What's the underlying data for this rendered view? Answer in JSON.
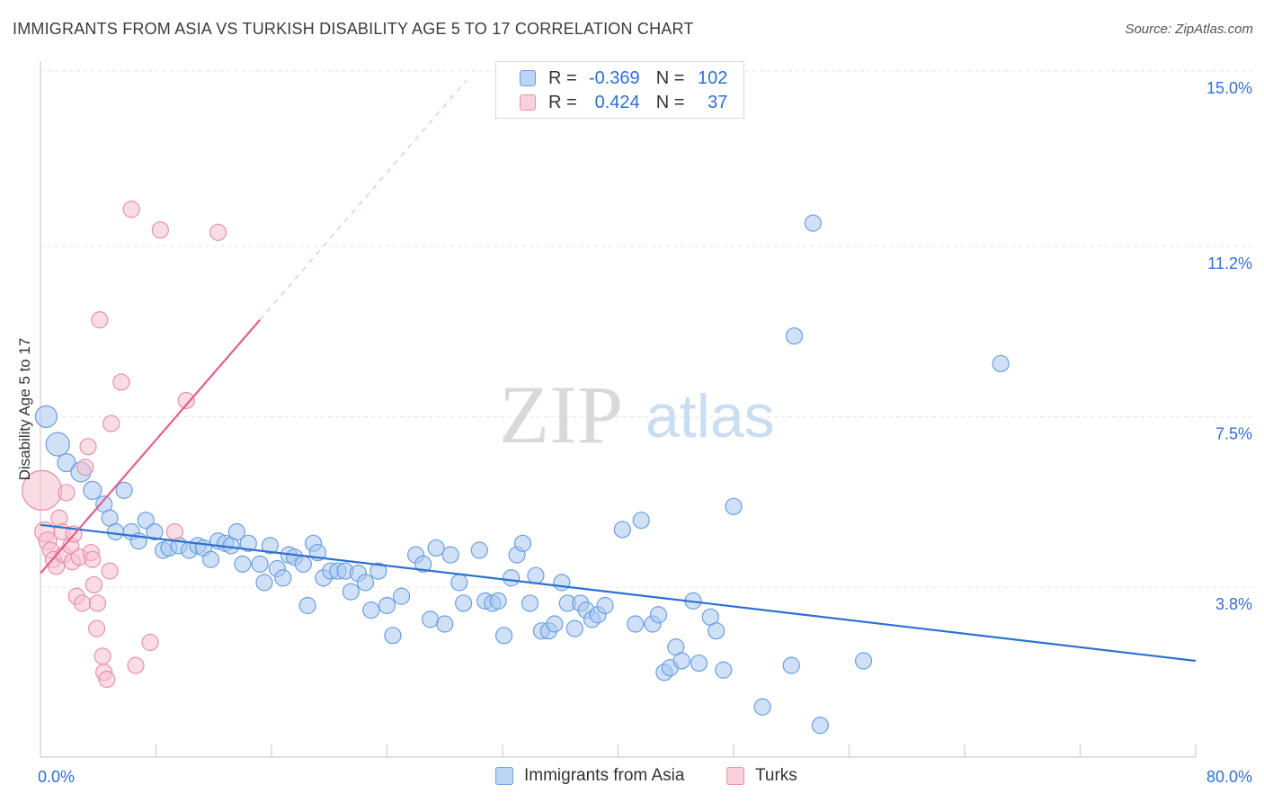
{
  "title": "IMMIGRANTS FROM ASIA VS TURKISH DISABILITY AGE 5 TO 17 CORRELATION CHART",
  "source": "Source: ZipAtlas.com",
  "watermark": {
    "zip": "ZIP",
    "atlas": "atlas"
  },
  "legend": {
    "rows": [
      {
        "r_label": "R =",
        "r_value": "-0.369",
        "n_label": "N =",
        "n_value": "102"
      },
      {
        "r_label": "R =",
        "r_value": "0.424",
        "n_label": "N =",
        "n_value": "37"
      }
    ]
  },
  "bottom_legend": {
    "asia": "Immigrants from Asia",
    "turks": "Turks"
  },
  "colors": {
    "asia_fill": "#a9c8f0",
    "asia_stroke": "#6a9fe0",
    "asia_line": "#2f6fd1",
    "turks_fill": "#f6c0d0",
    "turks_stroke": "#e890ac",
    "turks_line": "#e0608a",
    "tick_label": "#2f6fd1",
    "grid": "#e4e4e4"
  },
  "chart_data": {
    "type": "scatter",
    "title": "IMMIGRANTS FROM ASIA VS TURKISH DISABILITY AGE 5 TO 17 CORRELATION CHART",
    "xlabel": "",
    "ylabel": "Disability Age 5 to 17",
    "xlim": [
      0,
      80
    ],
    "ylim": [
      0,
      15.5
    ],
    "x_tick_labels": [
      "0.0%",
      "80.0%"
    ],
    "y_ticks": [
      3.8,
      7.5,
      11.2,
      15.0
    ],
    "y_tick_labels": [
      "3.8%",
      "7.5%",
      "11.2%",
      "15.0%"
    ],
    "grid": true,
    "legend_position": "top-center",
    "series": [
      {
        "name": "Immigrants from Asia",
        "r": -0.369,
        "n": 102,
        "trend": {
          "x": [
            0,
            80
          ],
          "y": [
            5.15,
            2.2
          ]
        },
        "points": [
          [
            0.4,
            7.5,
            12
          ],
          [
            1.2,
            6.9,
            13
          ],
          [
            1.8,
            6.5,
            10
          ],
          [
            2.8,
            6.3,
            11
          ],
          [
            3.6,
            5.9,
            10
          ],
          [
            5.8,
            5.9,
            9
          ],
          [
            4.4,
            5.6,
            9
          ],
          [
            4.8,
            5.3,
            9
          ],
          [
            5.2,
            5.0,
            9
          ],
          [
            6.3,
            5.0,
            9
          ],
          [
            7.3,
            5.25,
            9
          ],
          [
            7.9,
            5.0,
            9
          ],
          [
            6.8,
            4.8,
            9
          ],
          [
            8.5,
            4.6,
            9
          ],
          [
            8.9,
            4.65,
            9
          ],
          [
            9.6,
            4.7,
            9
          ],
          [
            10.3,
            4.6,
            9
          ],
          [
            10.9,
            4.7,
            9
          ],
          [
            11.3,
            4.65,
            9
          ],
          [
            11.8,
            4.4,
            9
          ],
          [
            12.3,
            4.8,
            9
          ],
          [
            12.8,
            4.75,
            9
          ],
          [
            13.2,
            4.7,
            9
          ],
          [
            13.6,
            5.0,
            9
          ],
          [
            14.0,
            4.3,
            9
          ],
          [
            14.4,
            4.75,
            9
          ],
          [
            15.2,
            4.3,
            9
          ],
          [
            15.5,
            3.9,
            9
          ],
          [
            15.9,
            4.7,
            9
          ],
          [
            16.4,
            4.2,
            9
          ],
          [
            16.8,
            4.0,
            9
          ],
          [
            17.2,
            4.5,
            9
          ],
          [
            17.6,
            4.45,
            9
          ],
          [
            18.2,
            4.3,
            9
          ],
          [
            18.5,
            3.4,
            9
          ],
          [
            18.9,
            4.75,
            9
          ],
          [
            19.2,
            4.55,
            9
          ],
          [
            19.6,
            4.0,
            9
          ],
          [
            20.1,
            4.15,
            9
          ],
          [
            20.6,
            4.15,
            9
          ],
          [
            21.1,
            4.15,
            9
          ],
          [
            21.5,
            3.7,
            9
          ],
          [
            22.0,
            4.1,
            9
          ],
          [
            22.5,
            3.9,
            9
          ],
          [
            22.9,
            3.3,
            9
          ],
          [
            23.4,
            4.15,
            9
          ],
          [
            24.0,
            3.4,
            9
          ],
          [
            24.4,
            2.75,
            9
          ],
          [
            25.0,
            3.6,
            9
          ],
          [
            26.0,
            4.5,
            9
          ],
          [
            26.5,
            4.3,
            9
          ],
          [
            27.0,
            3.1,
            9
          ],
          [
            27.4,
            4.65,
            9
          ],
          [
            28.0,
            3.0,
            9
          ],
          [
            28.4,
            4.5,
            9
          ],
          [
            29.0,
            3.9,
            9
          ],
          [
            29.3,
            3.45,
            9
          ],
          [
            30.4,
            4.6,
            9
          ],
          [
            30.8,
            3.5,
            9
          ],
          [
            31.3,
            3.45,
            9
          ],
          [
            31.7,
            3.5,
            9
          ],
          [
            32.1,
            2.75,
            9
          ],
          [
            32.6,
            4.0,
            9
          ],
          [
            33.0,
            4.5,
            9
          ],
          [
            33.4,
            4.75,
            9
          ],
          [
            33.9,
            3.45,
            9
          ],
          [
            34.3,
            4.05,
            9
          ],
          [
            34.7,
            2.85,
            9
          ],
          [
            35.2,
            2.85,
            9
          ],
          [
            35.6,
            3.0,
            9
          ],
          [
            36.1,
            3.9,
            9
          ],
          [
            36.5,
            3.45,
            9
          ],
          [
            37.0,
            2.9,
            9
          ],
          [
            37.4,
            3.45,
            9
          ],
          [
            37.8,
            3.3,
            9
          ],
          [
            38.2,
            3.1,
            9
          ],
          [
            38.6,
            3.2,
            9
          ],
          [
            39.1,
            3.4,
            9
          ],
          [
            40.3,
            5.05,
            9
          ],
          [
            41.2,
            3.0,
            9
          ],
          [
            41.6,
            5.25,
            9
          ],
          [
            42.4,
            3.0,
            9
          ],
          [
            42.8,
            3.2,
            9
          ],
          [
            43.2,
            1.95,
            9
          ],
          [
            43.6,
            2.05,
            9
          ],
          [
            44.0,
            2.5,
            9
          ],
          [
            44.4,
            2.2,
            9
          ],
          [
            45.2,
            3.5,
            9
          ],
          [
            45.6,
            2.15,
            9
          ],
          [
            46.4,
            3.15,
            9
          ],
          [
            46.8,
            2.85,
            9
          ],
          [
            47.3,
            2.0,
            9
          ],
          [
            48.0,
            5.55,
            9
          ],
          [
            50.0,
            1.2,
            9
          ],
          [
            52.0,
            2.1,
            9
          ],
          [
            52.2,
            9.25,
            9
          ],
          [
            53.5,
            11.7,
            9
          ],
          [
            54.0,
            0.8,
            9
          ],
          [
            57.0,
            2.2,
            9
          ],
          [
            66.5,
            8.65,
            9
          ]
        ]
      },
      {
        "name": "Turks",
        "r": 0.424,
        "n": 37,
        "trend": {
          "x": [
            0,
            15.2
          ],
          "y": [
            4.1,
            9.6
          ]
        },
        "trend_dashed": {
          "x": [
            15.2,
            29.5
          ],
          "y": [
            9.6,
            14.8
          ]
        },
        "points": [
          [
            0.1,
            5.9,
            22
          ],
          [
            0.3,
            5.0,
            11
          ],
          [
            0.5,
            4.8,
            10
          ],
          [
            0.7,
            4.6,
            9
          ],
          [
            0.9,
            4.4,
            9
          ],
          [
            1.1,
            4.25,
            9
          ],
          [
            1.3,
            5.3,
            9
          ],
          [
            1.5,
            5.0,
            9
          ],
          [
            1.6,
            4.5,
            9
          ],
          [
            1.8,
            5.85,
            9
          ],
          [
            2.1,
            4.7,
            9
          ],
          [
            2.2,
            4.35,
            9
          ],
          [
            2.3,
            4.95,
            9
          ],
          [
            2.5,
            3.6,
            9
          ],
          [
            2.7,
            4.45,
            9
          ],
          [
            2.9,
            3.45,
            9
          ],
          [
            3.1,
            6.4,
            9
          ],
          [
            3.3,
            6.85,
            9
          ],
          [
            3.5,
            4.55,
            9
          ],
          [
            3.6,
            4.4,
            9
          ],
          [
            3.7,
            3.85,
            9
          ],
          [
            3.9,
            2.9,
            9
          ],
          [
            3.95,
            3.45,
            9
          ],
          [
            4.1,
            9.6,
            9
          ],
          [
            4.3,
            2.3,
            9
          ],
          [
            4.4,
            1.95,
            9
          ],
          [
            4.6,
            1.8,
            9
          ],
          [
            4.8,
            4.15,
            9
          ],
          [
            4.9,
            7.35,
            9
          ],
          [
            5.6,
            8.25,
            9
          ],
          [
            6.3,
            12.0,
            9
          ],
          [
            6.6,
            2.1,
            9
          ],
          [
            7.6,
            2.6,
            9
          ],
          [
            8.3,
            11.55,
            9
          ],
          [
            9.3,
            5.0,
            9
          ],
          [
            10.1,
            7.85,
            9
          ],
          [
            12.3,
            11.5,
            9
          ]
        ]
      }
    ]
  }
}
